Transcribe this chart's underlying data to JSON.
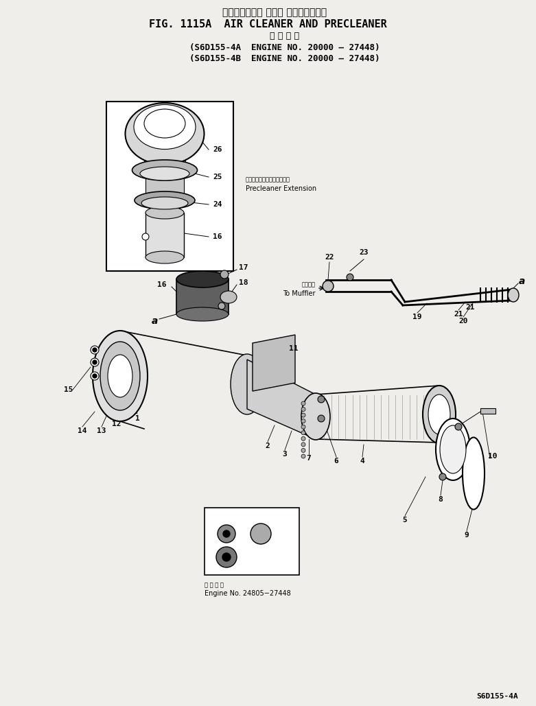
{
  "title_japanese": "エアークリーナ および プリクリーナ・",
  "title_english": "FIG. 1115A  AIR CLEANER AND PRECLEANER",
  "subtitle_japanese": "適 用 号 機",
  "subtitle1": "(S6D155-4A  ENGINE NO. 20000 – 27448)",
  "subtitle2": "(S6D155-4B  ENGINE NO. 20000 – 27448)",
  "footer": "S6D155-4A",
  "precleaner_label_jp": "プクリーナエクステンション",
  "precleaner_label_en": "Precleaner Extension",
  "to_muffler_jp": "マフラヘ",
  "to_muffler_en": "To Muffler",
  "engine_no_label_jp": "注 用 号 機",
  "engine_no_label": "Engine No. 24805−27448",
  "bg_color": "#f0eeea",
  "line_color": "#000000"
}
